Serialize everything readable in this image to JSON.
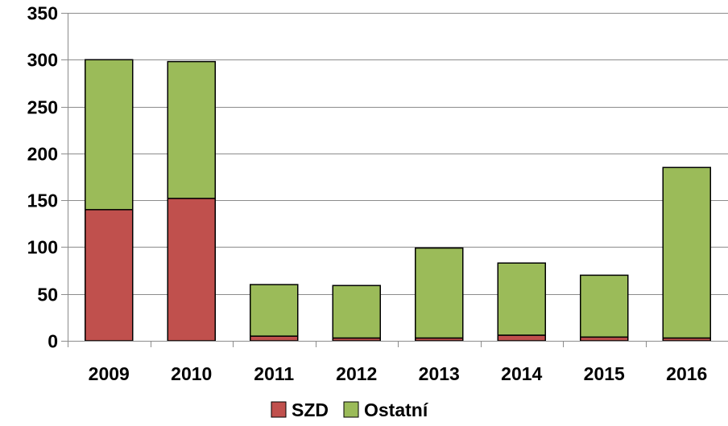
{
  "chart_data": {
    "type": "bar",
    "stacked": true,
    "categories": [
      "2009",
      "2010",
      "2011",
      "2012",
      "2013",
      "2014",
      "2015",
      "2016"
    ],
    "series": [
      {
        "name": "SZD",
        "color": "#C0504D",
        "values": [
          140,
          152,
          5,
          3,
          3,
          6,
          4,
          3
        ]
      },
      {
        "name": "Ostatní",
        "color": "#9BBB59",
        "values": [
          160,
          146,
          55,
          56,
          96,
          77,
          66,
          182
        ]
      }
    ],
    "ylim": [
      0,
      350
    ],
    "yticks": [
      0,
      50,
      100,
      150,
      200,
      250,
      300,
      350
    ],
    "grid": true,
    "legend_position": "bottom"
  }
}
